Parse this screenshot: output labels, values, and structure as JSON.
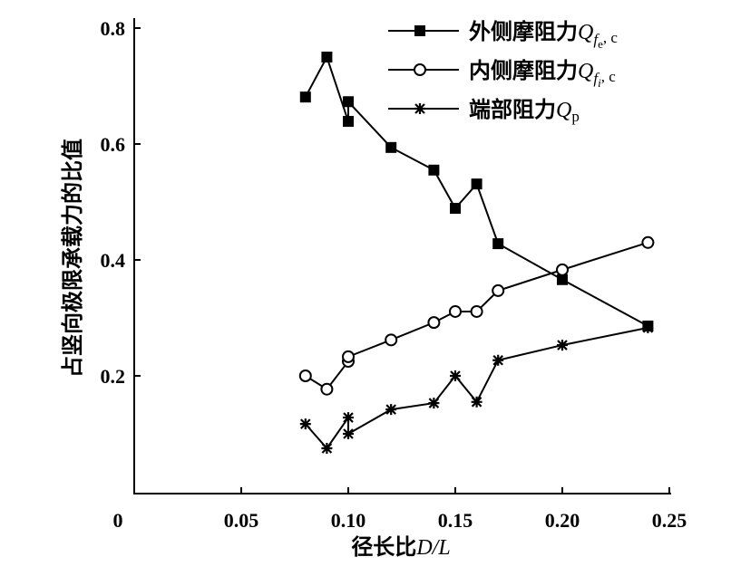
{
  "chart_data": {
    "type": "line",
    "title": "",
    "xlabel": "径长比D/L",
    "xlabel_parts": [
      "径长比",
      "D/L"
    ],
    "ylabel": "占竖向极限承载力的比值",
    "xlim": [
      0,
      0.25
    ],
    "ylim": [
      0,
      0.8
    ],
    "xticks": [
      0,
      0.05,
      0.1,
      0.15,
      0.2,
      0.25
    ],
    "xtick_labels": [
      "0",
      "0.05",
      "0.10",
      "0.15",
      "0.20",
      "0.25"
    ],
    "yticks": [
      0.2,
      0.4,
      0.6,
      0.8
    ],
    "ytick_labels": [
      "0.2",
      "0.4",
      "0.6",
      "0.8"
    ],
    "grid": false,
    "legend_position": "top-right",
    "series": [
      {
        "name": "外侧摩阻力Qfe,c",
        "label_cn": "外侧摩阻力",
        "sym": "Q",
        "sub": "fe",
        "sub2": "e",
        "tail": ", c",
        "marker": "filled-square",
        "x": [
          0.08,
          0.09,
          0.1,
          0.1,
          0.12,
          0.14,
          0.15,
          0.16,
          0.17,
          0.2,
          0.24
        ],
        "y": [
          0.681,
          0.75,
          0.639,
          0.673,
          0.594,
          0.555,
          0.489,
          0.531,
          0.428,
          0.366,
          0.286
        ]
      },
      {
        "name": "内侧摩阻力Qfi,c",
        "label_cn": "内侧摩阻力",
        "sym": "Q",
        "sub": "fi",
        "sub2": "i",
        "tail": ", c",
        "marker": "open-circle",
        "x": [
          0.08,
          0.09,
          0.1,
          0.1,
          0.12,
          0.14,
          0.15,
          0.16,
          0.17,
          0.2,
          0.24
        ],
        "y": [
          0.2,
          0.177,
          0.225,
          0.233,
          0.262,
          0.292,
          0.311,
          0.311,
          0.347,
          0.383,
          0.43
        ]
      },
      {
        "name": "端部阻力Qp",
        "label_cn": "端部阻力",
        "sym": "Q",
        "sub": "p",
        "sub2": "",
        "tail": "",
        "marker": "asterisk",
        "x": [
          0.08,
          0.09,
          0.1,
          0.1,
          0.12,
          0.14,
          0.15,
          0.16,
          0.17,
          0.2,
          0.24
        ],
        "y": [
          0.117,
          0.075,
          0.128,
          0.1,
          0.142,
          0.153,
          0.2,
          0.155,
          0.227,
          0.253,
          0.283
        ]
      }
    ],
    "color": "#000000"
  }
}
